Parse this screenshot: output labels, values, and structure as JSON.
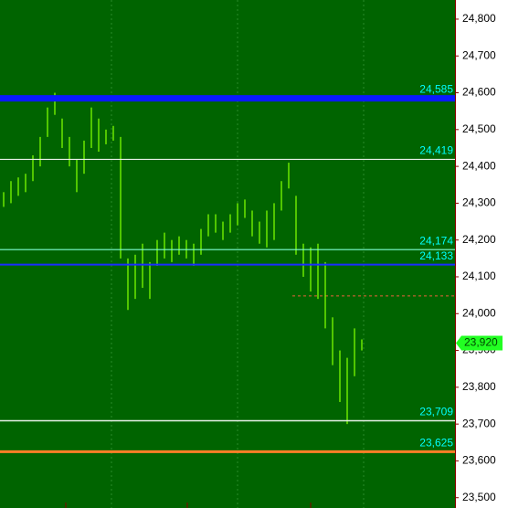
{
  "chart_data": {
    "type": "range-bar",
    "color": "#7cfc00",
    "low": [
      24290,
      24300,
      24320,
      24330,
      24360,
      24400,
      24480,
      24540,
      24450,
      24400,
      24330,
      24380,
      24450,
      24440,
      24460,
      24470,
      24150,
      24010,
      24040,
      24070,
      24040,
      24130,
      24150,
      24140,
      24160,
      24150,
      24130,
      24160,
      24210,
      24220,
      24200,
      24220,
      24240,
      24260,
      24210,
      24190,
      24180,
      24200,
      24280,
      24340,
      24160,
      24100,
      24060,
      24040,
      23960,
      23860,
      23760,
      23700,
      23830,
      23900
    ],
    "high": [
      24330,
      24360,
      24370,
      24380,
      24430,
      24480,
      24560,
      24600,
      24530,
      24480,
      24420,
      24470,
      24560,
      24530,
      24500,
      24510,
      24480,
      24150,
      24160,
      24190,
      24140,
      24200,
      24220,
      24200,
      24210,
      24200,
      24190,
      24230,
      24270,
      24270,
      24250,
      24270,
      24300,
      24310,
      24280,
      24250,
      24280,
      24300,
      24360,
      24410,
      24320,
      24190,
      24180,
      24190,
      24140,
      23990,
      23900,
      23880,
      23960,
      23930
    ],
    "ylim": [
      23472,
      24852
    ],
    "yticks": [
      {
        "value": 24800,
        "label": "24,800"
      },
      {
        "value": 24700,
        "label": "24,700"
      },
      {
        "value": 24600,
        "label": "24,600"
      },
      {
        "value": 24500,
        "label": "24,500"
      },
      {
        "value": 24400,
        "label": "24,400"
      },
      {
        "value": 24300,
        "label": "24,300"
      },
      {
        "value": 24200,
        "label": "24,200"
      },
      {
        "value": 24100,
        "label": "24,100"
      },
      {
        "value": 24000,
        "label": "24,000"
      },
      {
        "value": 23900,
        "label": "23,900"
      },
      {
        "value": 23800,
        "label": "23,800"
      },
      {
        "value": 23700,
        "label": "23,700"
      },
      {
        "value": 23600,
        "label": "23,600"
      },
      {
        "value": 23500,
        "label": "23,500"
      }
    ],
    "levels": [
      {
        "value": 24585,
        "label": "24,585",
        "color": "#0a1aff",
        "width": 7
      },
      {
        "value": 24419,
        "label": "24,419",
        "color": "#e8f0e8",
        "width": 1.2
      },
      {
        "value": 24174,
        "label": "24,174",
        "color": "#7fffd4",
        "width": 1.2
      },
      {
        "value": 24133,
        "label": "24,133",
        "color": "#1a2cff",
        "width": 2
      },
      {
        "value": 23709,
        "label": "23,709",
        "color": "#e8f0e8",
        "width": 1.5
      },
      {
        "value": 23625,
        "label": "23,625",
        "color": "#ff7f27",
        "width": 3
      }
    ],
    "marker": {
      "value": 24048,
      "color": "#e8603a"
    },
    "last": {
      "value": 23920,
      "label": "23,920",
      "color": "#22ff22"
    }
  }
}
